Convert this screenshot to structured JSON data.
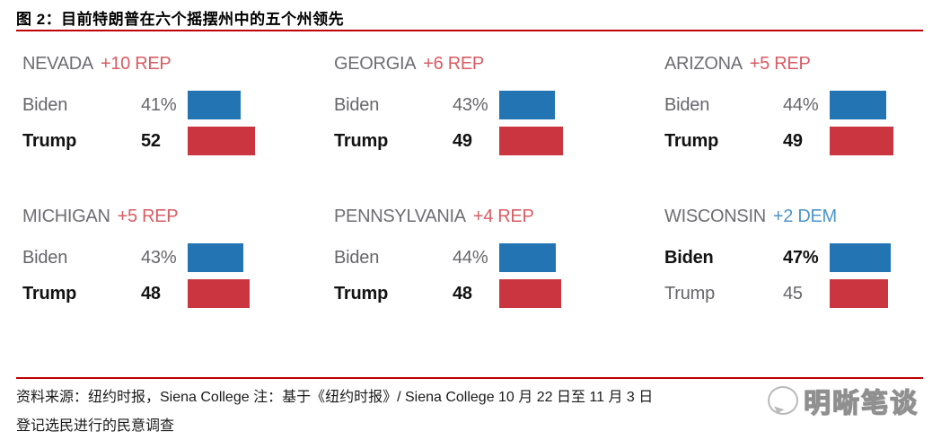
{
  "title": "图 2：目前特朗普在六个摇摆州中的五个州领先",
  "footer": {
    "line1": "资料来源：纽约时报，Siena College  注：基于《纽约时报》/ Siena College 10 月 22 日至 11 月 3 日",
    "line2": "登记选民进行的民意调查"
  },
  "watermark": {
    "icon": "speech-bubble-icon",
    "text": "明晰笔谈"
  },
  "colors": {
    "dem_bar": "#2274b2",
    "rep_bar": "#cb353f",
    "dem_text": "#4e94c9",
    "rep_text": "#d85c63",
    "state_gray": "#6e6e73",
    "rule_red": "#c00000"
  },
  "chart_data": {
    "type": "bar",
    "unit": "%",
    "note": "horizontal paired bars per state, bar length proportional to percent",
    "panels": [
      {
        "state": "NEVADA",
        "margin": "+10 REP",
        "margin_party": "REP",
        "rows": [
          {
            "name": "Biden",
            "party": "DEM",
            "value": 41,
            "display": "41%",
            "bold": false
          },
          {
            "name": "Trump",
            "party": "REP",
            "value": 52,
            "display": "52",
            "bold": true
          }
        ]
      },
      {
        "state": "GEORGIA",
        "margin": "+6 REP",
        "margin_party": "REP",
        "rows": [
          {
            "name": "Biden",
            "party": "DEM",
            "value": 43,
            "display": "43%",
            "bold": false
          },
          {
            "name": "Trump",
            "party": "REP",
            "value": 49,
            "display": "49",
            "bold": true
          }
        ]
      },
      {
        "state": "ARIZONA",
        "margin": "+5 REP",
        "margin_party": "REP",
        "rows": [
          {
            "name": "Biden",
            "party": "DEM",
            "value": 44,
            "display": "44%",
            "bold": false
          },
          {
            "name": "Trump",
            "party": "REP",
            "value": 49,
            "display": "49",
            "bold": true
          }
        ]
      },
      {
        "state": "MICHIGAN",
        "margin": "+5 REP",
        "margin_party": "REP",
        "rows": [
          {
            "name": "Biden",
            "party": "DEM",
            "value": 43,
            "display": "43%",
            "bold": false
          },
          {
            "name": "Trump",
            "party": "REP",
            "value": 48,
            "display": "48",
            "bold": true
          }
        ]
      },
      {
        "state": "PENNSYLVANIA",
        "margin": "+4 REP",
        "margin_party": "REP",
        "rows": [
          {
            "name": "Biden",
            "party": "DEM",
            "value": 44,
            "display": "44%",
            "bold": false
          },
          {
            "name": "Trump",
            "party": "REP",
            "value": 48,
            "display": "48",
            "bold": true
          }
        ]
      },
      {
        "state": "WISCONSIN",
        "margin": "+2 DEM",
        "margin_party": "DEM",
        "rows": [
          {
            "name": "Biden",
            "party": "DEM",
            "value": 47,
            "display": "47%",
            "bold": true
          },
          {
            "name": "Trump",
            "party": "REP",
            "value": 45,
            "display": "45",
            "bold": false
          }
        ]
      }
    ]
  }
}
